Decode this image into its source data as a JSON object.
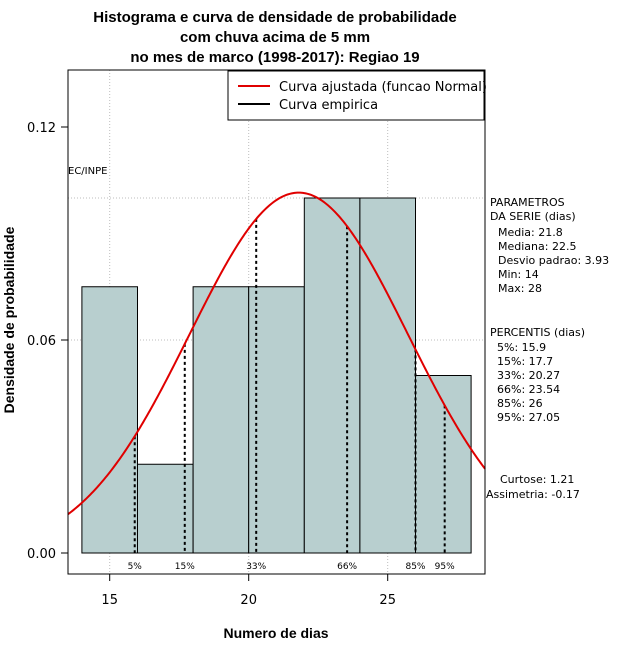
{
  "chart_data": {
    "type": "bar",
    "title_lines": [
      "Histograma e curva de densidade de probabilidade",
      "com chuva acima de 5 mm",
      "no mes de marco (1998-2017): Regiao 19"
    ],
    "xlabel": "Numero de dias",
    "ylabel": "Densidade de probabilidade",
    "xlim": [
      13.5,
      28.5
    ],
    "ylim": [
      0,
      0.135
    ],
    "x_ticks": [
      15,
      20,
      25
    ],
    "y_ticks": [
      0.0,
      0.06,
      0.12
    ],
    "y_tick_labels": [
      "0.00",
      "0.06",
      "0.12"
    ],
    "grid_x": [
      15,
      20,
      25
    ],
    "grid_y": [
      0.06,
      0.1
    ],
    "bins": [
      {
        "from": 14,
        "to": 16,
        "density": 0.075
      },
      {
        "from": 16,
        "to": 18,
        "density": 0.025
      },
      {
        "from": 18,
        "to": 20,
        "density": 0.075
      },
      {
        "from": 20,
        "to": 22,
        "density": 0.075
      },
      {
        "from": 22,
        "to": 24,
        "density": 0.1
      },
      {
        "from": 24,
        "to": 26,
        "density": 0.1
      },
      {
        "from": 26,
        "to": 28,
        "density": 0.05
      }
    ],
    "bar_color": "#b8cfcf",
    "normal_curve": {
      "mean": 21.8,
      "sd": 3.93,
      "color": "#e00000"
    },
    "percentile_lines": [
      {
        "label": "5%",
        "x": 15.9
      },
      {
        "label": "15%",
        "x": 17.7
      },
      {
        "label": "33%",
        "x": 20.27
      },
      {
        "label": "66%",
        "x": 23.54
      },
      {
        "label": "85%",
        "x": 26
      },
      {
        "label": "95%",
        "x": 27.05
      }
    ],
    "legend": {
      "position": "top-right",
      "entries": [
        {
          "label": "Curva ajustada (funcao Normal)",
          "color": "#e00000"
        },
        {
          "label": "Curva empirica",
          "color": "#000000"
        }
      ]
    },
    "watermark": "EC/INPE",
    "side_panel": {
      "parametros_title": [
        "PARAMETROS",
        "DA SERIE (dias)"
      ],
      "parametros": [
        "Media: 21.8",
        "Mediana: 22.5",
        "Desvio padrao: 3.93",
        "Min: 14",
        "Max: 28"
      ],
      "percentis_title": "PERCENTIS (dias)",
      "percentis": [
        "5%: 15.9",
        "15%: 17.7",
        "33%: 20.27",
        "66%: 23.54",
        "85%: 26",
        "95%: 27.05"
      ],
      "curtose": "Curtose: 1.21",
      "assimetria": "Assimetria: -0.17"
    }
  }
}
